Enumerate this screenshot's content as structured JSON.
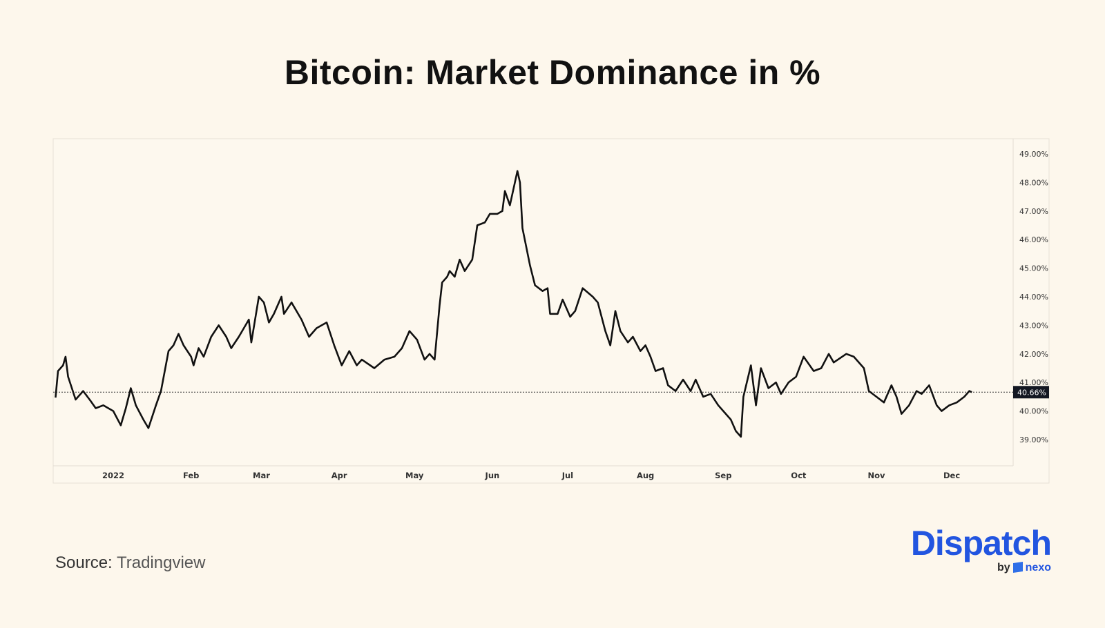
{
  "logo": {
    "brand": "Dispatch",
    "by": "by",
    "partner": "nexo",
    "brand_color": "#2255e0"
  },
  "source": {
    "label": "Source:",
    "value": "Tradingview"
  },
  "chart_data": {
    "type": "line",
    "title": "Bitcoin: Market Dominance in %",
    "xlabel": "",
    "ylabel": "",
    "ylim": [
      38.1,
      49.5
    ],
    "xlim": [
      "2021-12-09",
      "2022-12-31"
    ],
    "grid": false,
    "line_color": "#111111",
    "x_ticks": [
      {
        "date": "2022-01-01",
        "label": "2022"
      },
      {
        "date": "2022-02-01",
        "label": "Feb"
      },
      {
        "date": "2022-03-01",
        "label": "Mar"
      },
      {
        "date": "2022-04-01",
        "label": "Apr"
      },
      {
        "date": "2022-05-01",
        "label": "May"
      },
      {
        "date": "2022-06-01",
        "label": "Jun"
      },
      {
        "date": "2022-07-01",
        "label": "Jul"
      },
      {
        "date": "2022-08-01",
        "label": "Aug"
      },
      {
        "date": "2022-09-01",
        "label": "Sep"
      },
      {
        "date": "2022-10-01",
        "label": "Oct"
      },
      {
        "date": "2022-11-01",
        "label": "Nov"
      },
      {
        "date": "2022-12-01",
        "label": "Dec"
      }
    ],
    "y_ticks": [
      {
        "value": 49,
        "label": "49.00%"
      },
      {
        "value": 48,
        "label": "48.00%"
      },
      {
        "value": 47,
        "label": "47.00%"
      },
      {
        "value": 46,
        "label": "46.00%"
      },
      {
        "value": 45,
        "label": "45.00%"
      },
      {
        "value": 44,
        "label": "44.00%"
      },
      {
        "value": 43,
        "label": "43.00%"
      },
      {
        "value": 42,
        "label": "42.00%"
      },
      {
        "value": 41,
        "label": "41.00%"
      },
      {
        "value": 40,
        "label": "40.00%"
      },
      {
        "value": 39,
        "label": "39.00%"
      }
    ],
    "last_value": {
      "value": 40.66,
      "label": "40.66%",
      "badge_color": "#131722"
    },
    "points": [
      [
        "2021-12-09",
        40.47
      ],
      [
        "2021-12-10",
        41.4
      ],
      [
        "2021-12-12",
        41.6
      ],
      [
        "2021-12-13",
        41.9
      ],
      [
        "2021-12-14",
        41.2
      ],
      [
        "2021-12-17",
        40.4
      ],
      [
        "2021-12-20",
        40.7
      ],
      [
        "2021-12-23",
        40.35
      ],
      [
        "2021-12-25",
        40.1
      ],
      [
        "2021-12-28",
        40.2
      ],
      [
        "2022-01-01",
        40.0
      ],
      [
        "2022-01-04",
        39.5
      ],
      [
        "2022-01-06",
        40.1
      ],
      [
        "2022-01-08",
        40.8
      ],
      [
        "2022-01-10",
        40.2
      ],
      [
        "2022-01-13",
        39.7
      ],
      [
        "2022-01-15",
        39.4
      ],
      [
        "2022-01-18",
        40.2
      ],
      [
        "2022-01-20",
        40.7
      ],
      [
        "2022-01-23",
        42.1
      ],
      [
        "2022-01-25",
        42.3
      ],
      [
        "2022-01-27",
        42.7
      ],
      [
        "2022-01-29",
        42.3
      ],
      [
        "2022-02-01",
        41.9
      ],
      [
        "2022-02-02",
        41.6
      ],
      [
        "2022-02-04",
        42.2
      ],
      [
        "2022-02-06",
        41.9
      ],
      [
        "2022-02-09",
        42.6
      ],
      [
        "2022-02-12",
        43.0
      ],
      [
        "2022-02-15",
        42.6
      ],
      [
        "2022-02-17",
        42.2
      ],
      [
        "2022-02-20",
        42.6
      ],
      [
        "2022-02-24",
        43.2
      ],
      [
        "2022-02-25",
        42.4
      ],
      [
        "2022-02-28",
        44.0
      ],
      [
        "2022-03-02",
        43.8
      ],
      [
        "2022-03-04",
        43.1
      ],
      [
        "2022-03-06",
        43.4
      ],
      [
        "2022-03-09",
        44.0
      ],
      [
        "2022-03-10",
        43.4
      ],
      [
        "2022-03-13",
        43.8
      ],
      [
        "2022-03-17",
        43.2
      ],
      [
        "2022-03-20",
        42.6
      ],
      [
        "2022-03-23",
        42.9
      ],
      [
        "2022-03-25",
        43.0
      ],
      [
        "2022-03-27",
        43.1
      ],
      [
        "2022-03-30",
        42.3
      ],
      [
        "2022-04-02",
        41.6
      ],
      [
        "2022-04-05",
        42.1
      ],
      [
        "2022-04-08",
        41.6
      ],
      [
        "2022-04-10",
        41.8
      ],
      [
        "2022-04-15",
        41.5
      ],
      [
        "2022-04-19",
        41.8
      ],
      [
        "2022-04-23",
        41.9
      ],
      [
        "2022-04-26",
        42.2
      ],
      [
        "2022-04-29",
        42.8
      ],
      [
        "2022-05-02",
        42.5
      ],
      [
        "2022-05-05",
        41.8
      ],
      [
        "2022-05-07",
        42.0
      ],
      [
        "2022-05-09",
        41.8
      ],
      [
        "2022-05-11",
        43.7
      ],
      [
        "2022-05-12",
        44.5
      ],
      [
        "2022-05-14",
        44.7
      ],
      [
        "2022-05-15",
        44.9
      ],
      [
        "2022-05-17",
        44.7
      ],
      [
        "2022-05-19",
        45.3
      ],
      [
        "2022-05-21",
        44.9
      ],
      [
        "2022-05-24",
        45.3
      ],
      [
        "2022-05-26",
        46.5
      ],
      [
        "2022-05-29",
        46.6
      ],
      [
        "2022-05-31",
        46.9
      ],
      [
        "2022-06-03",
        46.9
      ],
      [
        "2022-06-05",
        47.0
      ],
      [
        "2022-06-06",
        47.7
      ],
      [
        "2022-06-08",
        47.2
      ],
      [
        "2022-06-11",
        48.4
      ],
      [
        "2022-06-12",
        48.0
      ],
      [
        "2022-06-13",
        46.4
      ],
      [
        "2022-06-16",
        45.1
      ],
      [
        "2022-06-18",
        44.4
      ],
      [
        "2022-06-21",
        44.2
      ],
      [
        "2022-06-23",
        44.3
      ],
      [
        "2022-06-24",
        43.4
      ],
      [
        "2022-06-27",
        43.4
      ],
      [
        "2022-06-29",
        43.9
      ],
      [
        "2022-07-02",
        43.3
      ],
      [
        "2022-07-04",
        43.5
      ],
      [
        "2022-07-07",
        44.3
      ],
      [
        "2022-07-11",
        44.0
      ],
      [
        "2022-07-13",
        43.8
      ],
      [
        "2022-07-16",
        42.8
      ],
      [
        "2022-07-18",
        42.3
      ],
      [
        "2022-07-20",
        43.5
      ],
      [
        "2022-07-22",
        42.8
      ],
      [
        "2022-07-25",
        42.4
      ],
      [
        "2022-07-27",
        42.6
      ],
      [
        "2022-07-30",
        42.1
      ],
      [
        "2022-08-01",
        42.3
      ],
      [
        "2022-08-03",
        41.9
      ],
      [
        "2022-08-05",
        41.4
      ],
      [
        "2022-08-08",
        41.5
      ],
      [
        "2022-08-10",
        40.9
      ],
      [
        "2022-08-13",
        40.7
      ],
      [
        "2022-08-16",
        41.1
      ],
      [
        "2022-08-19",
        40.7
      ],
      [
        "2022-08-21",
        41.1
      ],
      [
        "2022-08-24",
        40.5
      ],
      [
        "2022-08-27",
        40.6
      ],
      [
        "2022-08-30",
        40.2
      ],
      [
        "2022-09-01",
        40.0
      ],
      [
        "2022-09-04",
        39.7
      ],
      [
        "2022-09-06",
        39.3
      ],
      [
        "2022-09-08",
        39.1
      ],
      [
        "2022-09-09",
        40.5
      ],
      [
        "2022-09-12",
        41.6
      ],
      [
        "2022-09-14",
        40.2
      ],
      [
        "2022-09-16",
        41.5
      ],
      [
        "2022-09-19",
        40.8
      ],
      [
        "2022-09-22",
        41.0
      ],
      [
        "2022-09-24",
        40.6
      ],
      [
        "2022-09-27",
        41.0
      ],
      [
        "2022-09-30",
        41.2
      ],
      [
        "2022-10-03",
        41.9
      ],
      [
        "2022-10-07",
        41.4
      ],
      [
        "2022-10-10",
        41.5
      ],
      [
        "2022-10-13",
        42.0
      ],
      [
        "2022-10-15",
        41.7
      ],
      [
        "2022-10-20",
        42.0
      ],
      [
        "2022-10-23",
        41.9
      ],
      [
        "2022-10-27",
        41.5
      ],
      [
        "2022-10-29",
        40.7
      ],
      [
        "2022-11-01",
        40.5
      ],
      [
        "2022-11-04",
        40.3
      ],
      [
        "2022-11-07",
        40.9
      ],
      [
        "2022-11-09",
        40.5
      ],
      [
        "2022-11-11",
        39.9
      ],
      [
        "2022-11-14",
        40.2
      ],
      [
        "2022-11-17",
        40.7
      ],
      [
        "2022-11-19",
        40.6
      ],
      [
        "2022-11-22",
        40.9
      ],
      [
        "2022-11-25",
        40.2
      ],
      [
        "2022-11-27",
        40.0
      ],
      [
        "2022-11-30",
        40.2
      ],
      [
        "2022-12-03",
        40.3
      ],
      [
        "2022-12-06",
        40.5
      ],
      [
        "2022-12-08",
        40.7
      ],
      [
        "2022-12-09",
        40.66
      ]
    ]
  }
}
